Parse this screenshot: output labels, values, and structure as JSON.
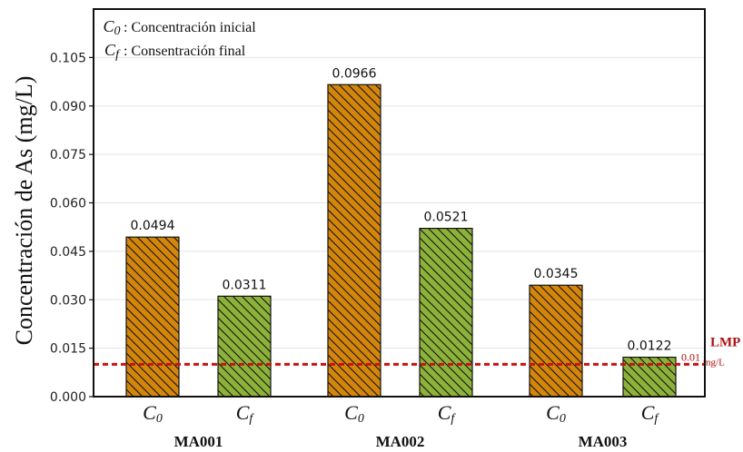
{
  "chart_data": {
    "type": "bar",
    "ylabel": "Concentración de As (mg/L)",
    "ylim": [
      0,
      0.12
    ],
    "yticks": [
      "0.000",
      "0.015",
      "0.030",
      "0.045",
      "0.060",
      "0.075",
      "0.090",
      "0.105"
    ],
    "grid": true,
    "legend_placement": "top-left",
    "legend": [
      {
        "symbol": "C",
        "sub": "0",
        "text": ": Concentración inicial"
      },
      {
        "symbol": "C",
        "sub": "f",
        "text": ": Consentración final"
      }
    ],
    "groups": [
      "MA001",
      "MA002",
      "MA003"
    ],
    "bars": [
      {
        "group": "MA001",
        "symbol": "C",
        "sub": "0",
        "value": 0.0494,
        "label": "0.0494",
        "color": "#d4860b"
      },
      {
        "group": "MA001",
        "symbol": "C",
        "sub": "f",
        "value": 0.0311,
        "label": "0.0311",
        "color": "#8db23a"
      },
      {
        "group": "MA002",
        "symbol": "C",
        "sub": "0",
        "value": 0.0966,
        "label": "0.0966",
        "color": "#d4860b"
      },
      {
        "group": "MA002",
        "symbol": "C",
        "sub": "f",
        "value": 0.0521,
        "label": "0.0521",
        "color": "#8db23a"
      },
      {
        "group": "MA003",
        "symbol": "C",
        "sub": "0",
        "value": 0.0345,
        "label": "0.0345",
        "color": "#d4860b"
      },
      {
        "group": "MA003",
        "symbol": "C",
        "sub": "f",
        "value": 0.0122,
        "label": "0.0122",
        "color": "#8db23a"
      }
    ],
    "reference_line": {
      "label": "LMP",
      "value": 0.01,
      "value_label": "0.01",
      "unit": "mg/L",
      "color": "#cc1111"
    }
  }
}
